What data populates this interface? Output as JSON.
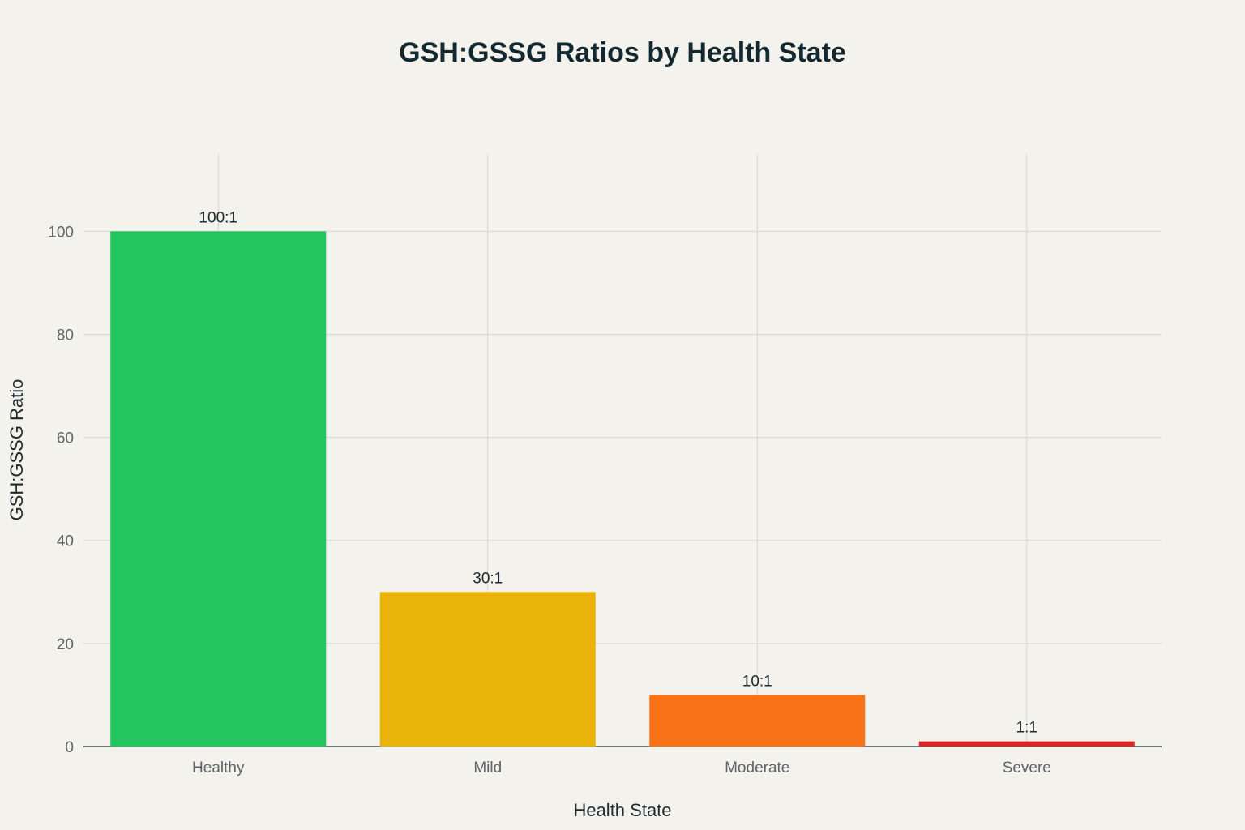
{
  "chart_data": {
    "type": "bar",
    "title": "GSH:GSSG Ratios by Health State",
    "xlabel": "Health State",
    "ylabel": "GSH:GSSG Ratio",
    "categories": [
      "Healthy",
      "Mild",
      "Moderate",
      "Severe"
    ],
    "values": [
      100,
      30,
      10,
      1
    ],
    "data_labels": [
      "100:1",
      "30:1",
      "10:1",
      "1:1"
    ],
    "colors": [
      "#22C55E",
      "#EAB308",
      "#F97316",
      "#DC2626"
    ],
    "ylim": [
      0,
      115
    ],
    "yticks": [
      0,
      20,
      40,
      60,
      80,
      100
    ],
    "grid": true,
    "legend": "none"
  }
}
